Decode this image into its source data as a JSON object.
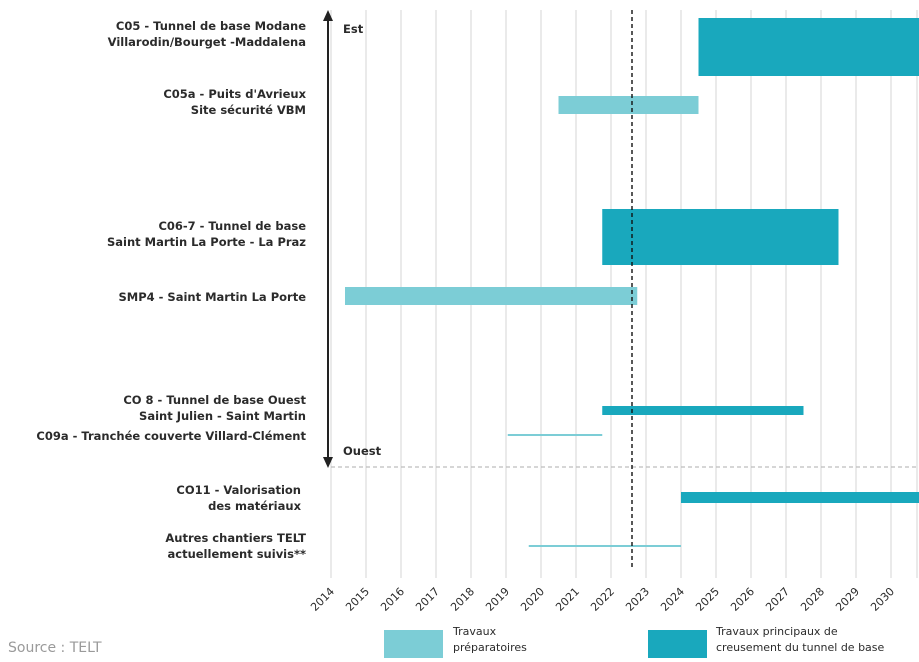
{
  "chart_data": {
    "type": "gantt",
    "x_ticks": [
      "2014",
      "2015",
      "2016",
      "2017",
      "2018",
      "2019",
      "2020",
      "2021",
      "2022",
      "2023",
      "2024",
      "2025",
      "2026",
      "2027",
      "2028",
      "2029",
      "2030"
    ],
    "xlim": [
      2014,
      2030.8
    ],
    "today_marker": 2022.6,
    "directions": {
      "top": "Est",
      "bottom": "Ouest"
    },
    "rows": [
      {
        "label_lines": [
          "C05 - Tunnel de base Modane",
          "Villarodin/Bourget -Maddalena"
        ]
      },
      {
        "label_lines": [
          "C05a - Puits d'Avrieux",
          "Site sécurité VBM"
        ]
      },
      {
        "label_lines": [
          "C06-7 - Tunnel de base",
          "Saint Martin La Porte - La Praz"
        ]
      },
      {
        "label_lines": [
          "SMP4 - Saint Martin La Porte"
        ]
      },
      {
        "label_lines": [
          "CO 8 - Tunnel de base Ouest",
          "Saint Julien - Saint Martin"
        ]
      },
      {
        "label_lines": [
          "C09a - Tranchée couverte Villard-Clément"
        ]
      },
      {
        "label_lines": [
          "CO11 - Valorisation",
          "des matériaux"
        ]
      },
      {
        "label_lines": [
          "Autres chantiers TELT",
          "actuellement suivis**"
        ]
      }
    ],
    "bars": [
      {
        "row": 0,
        "start": 2024.5,
        "end": 2030.8,
        "kind": "main"
      },
      {
        "row": 1,
        "start": 2020.5,
        "end": 2024.5,
        "kind": "prep"
      },
      {
        "row": 2,
        "start": 2021.75,
        "end": 2028.5,
        "kind": "main"
      },
      {
        "row": 3,
        "start": 2014.4,
        "end": 2022.75,
        "kind": "prep"
      },
      {
        "row": 4,
        "start": 2021.75,
        "end": 2027.5,
        "kind": "main"
      },
      {
        "row": 5,
        "start": 2019.05,
        "end": 2021.75,
        "kind": "prep"
      },
      {
        "row": 6,
        "start": 2024.0,
        "end": 2030.8,
        "kind": "main"
      },
      {
        "row": 7,
        "start": 2019.65,
        "end": 2024.0,
        "kind": "prep"
      }
    ],
    "legend": [
      {
        "kind": "prep",
        "lines": [
          "Travaux",
          "préparatoires"
        ]
      },
      {
        "kind": "main",
        "lines": [
          "Travaux principaux de",
          "creusement du tunnel de base"
        ]
      }
    ],
    "colors": {
      "prep": "#7ccdd6",
      "main": "#19a8bd",
      "grid": "#d4d4d4",
      "axis": "#222222"
    }
  },
  "source": "Source : TELT"
}
